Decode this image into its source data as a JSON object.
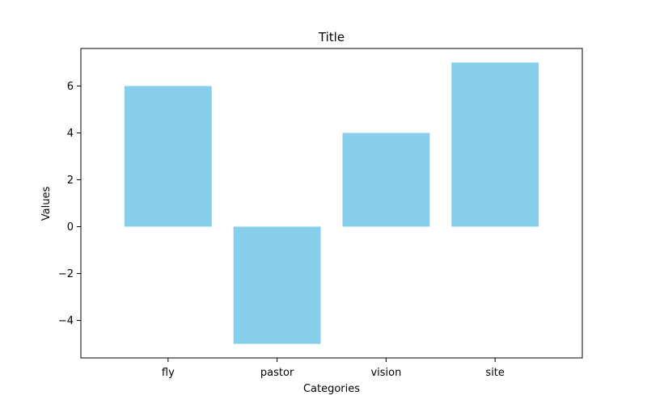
{
  "chart_data": {
    "type": "bar",
    "title": "Title",
    "xlabel": "Categories",
    "ylabel": "Values",
    "categories": [
      "fly",
      "pastor",
      "vision",
      "site"
    ],
    "values": [
      6,
      -5,
      4,
      7
    ],
    "ylim": [
      -5.6,
      7.6
    ],
    "yticks": [
      -4,
      -2,
      0,
      2,
      4,
      6
    ],
    "ytick_labels": [
      "−4",
      "−2",
      "0",
      "2",
      "4",
      "6"
    ],
    "bar_color": "#87ceeb",
    "grid": false,
    "legend": "none"
  }
}
